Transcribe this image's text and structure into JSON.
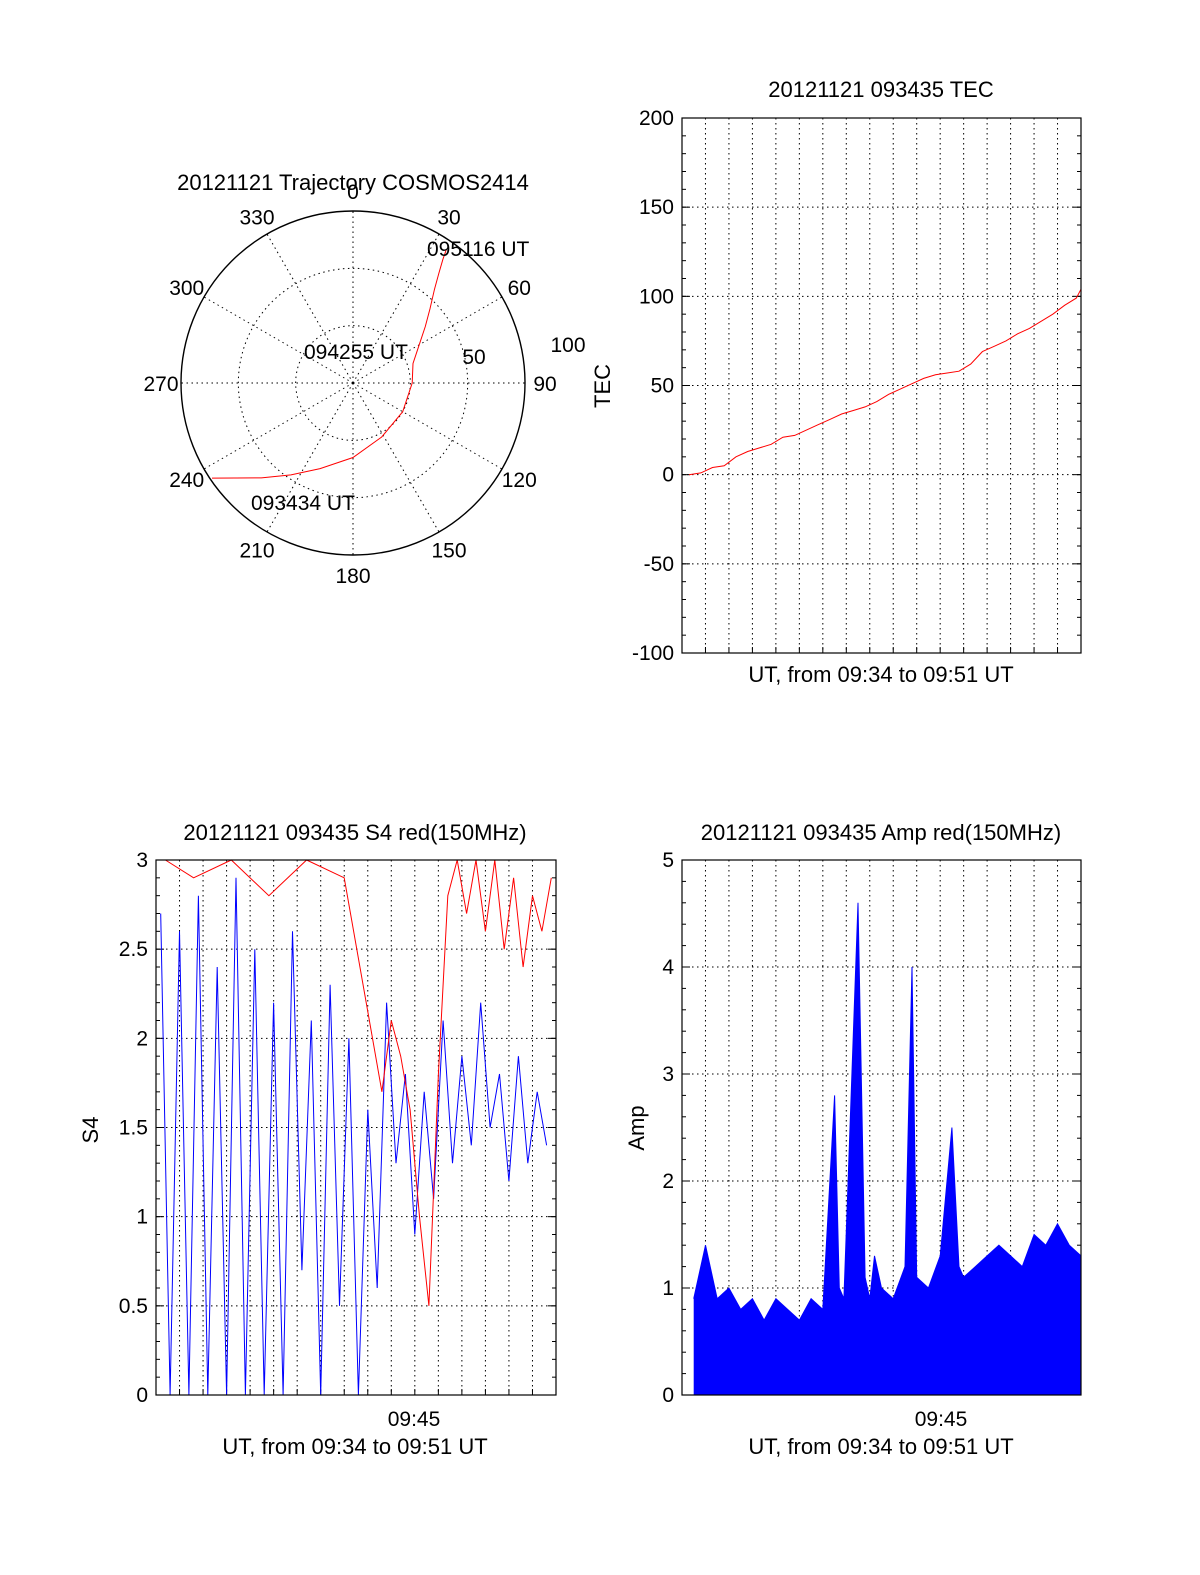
{
  "chart_data": [
    {
      "id": "polar",
      "type": "scatter",
      "title": "20121121 Trajectory COSMOS2414",
      "azimuth_labels": [
        "0",
        "30",
        "60",
        "90",
        "120",
        "150",
        "180",
        "210",
        "240",
        "270",
        "300",
        "330"
      ],
      "radial_labels": [
        "50",
        "100"
      ],
      "annotations": [
        "095116 UT",
        "094255 UT",
        "093434 UT"
      ],
      "series": [
        {
          "color": "#ff0000",
          "azimuth_deg": [
            236,
            231,
            224,
            214,
            201,
            180,
            152,
            120,
            90,
            72,
            60,
            52,
            46,
            41,
            38,
            36,
            35
          ],
          "radius": [
            89,
            79,
            69,
            58,
            48,
            39,
            32,
            30,
            31,
            33,
            40,
            48,
            56,
            65,
            73,
            80,
            85
          ]
        }
      ],
      "grid": true
    },
    {
      "id": "tec",
      "type": "line",
      "title": "20121121 093435 TEC",
      "xlabel": "UT, from 09:34 to 09:51 UT",
      "ylabel": "TEC",
      "ylim": [
        -100,
        200
      ],
      "yticks": [
        "200",
        "150",
        "100",
        "50",
        "0",
        "-50",
        "-100"
      ],
      "xlim_minutes": [
        0,
        17
      ],
      "grid": true,
      "series": [
        {
          "color": "#ff0000",
          "x_minutes": [
            0.3,
            0.8,
            1.3,
            1.8,
            2.3,
            2.8,
            3.3,
            3.8,
            4.3,
            4.8,
            5.3,
            5.8,
            6.3,
            6.8,
            7.3,
            7.8,
            8.3,
            8.8,
            9.3,
            9.8,
            10.3,
            10.8,
            11.3,
            11.8,
            12.3,
            12.8,
            13.3,
            13.8,
            14.3,
            14.8,
            15.3,
            15.8,
            16.3,
            16.8,
            17.0
          ],
          "values": [
            0,
            1,
            4,
            5,
            10,
            13,
            15,
            17,
            21,
            22,
            25,
            28,
            31,
            34,
            36,
            38,
            41,
            45,
            48,
            51,
            54,
            56,
            57,
            58,
            62,
            69,
            72,
            75,
            79,
            82,
            86,
            90,
            95,
            99,
            104
          ]
        }
      ]
    },
    {
      "id": "s4",
      "type": "line",
      "title": "20121121 093435 S4 red(150MHz)",
      "xlabel": "UT, from 09:34 to 09:51 UT",
      "ylabel": "S4",
      "ylim": [
        0,
        3
      ],
      "yticks": [
        "3",
        "2.5",
        "2",
        "1.5",
        "1",
        "0.5",
        "0"
      ],
      "xtick_label": "09:45",
      "xlim_minutes": [
        0,
        17
      ],
      "grid": true,
      "series": [
        {
          "color": "#0000ff",
          "x_minutes": [
            0.2,
            0.6,
            1.0,
            1.4,
            1.8,
            2.2,
            2.6,
            3.0,
            3.4,
            3.8,
            4.2,
            4.6,
            5.0,
            5.4,
            5.8,
            6.2,
            6.6,
            7.0,
            7.4,
            7.8,
            8.2,
            8.6,
            9.0,
            9.4,
            9.8,
            10.2,
            10.6,
            11.0,
            11.4,
            11.8,
            12.2,
            12.6,
            13.0,
            13.4,
            13.8,
            14.2,
            14.6,
            15.0,
            15.4,
            15.8,
            16.2,
            16.6
          ],
          "values": [
            2.7,
            0.0,
            2.6,
            0.0,
            2.8,
            0.0,
            2.4,
            0.0,
            2.9,
            0.0,
            2.5,
            0.0,
            2.2,
            0.0,
            2.6,
            0.7,
            2.1,
            0.0,
            2.3,
            0.5,
            2.0,
            0.0,
            1.6,
            0.6,
            2.2,
            1.3,
            1.8,
            0.9,
            1.7,
            1.1,
            2.1,
            1.3,
            1.9,
            1.4,
            2.2,
            1.5,
            1.8,
            1.2,
            1.9,
            1.3,
            1.7,
            1.4
          ]
        },
        {
          "color": "#ff0000",
          "x_minutes": [
            0.4,
            1.6,
            3.2,
            4.8,
            6.4,
            8.0,
            9.2,
            9.6,
            10.0,
            10.4,
            10.8,
            11.2,
            11.6,
            12.0,
            12.4,
            12.8,
            13.2,
            13.6,
            14.0,
            14.4,
            14.8,
            15.2,
            15.6,
            16.0,
            16.4,
            16.8
          ],
          "values": [
            3.0,
            2.9,
            3.0,
            2.8,
            3.0,
            2.9,
            2.0,
            1.7,
            2.1,
            1.9,
            1.6,
            1.0,
            0.5,
            1.8,
            2.8,
            3.0,
            2.7,
            3.0,
            2.6,
            3.0,
            2.5,
            2.9,
            2.4,
            2.8,
            2.6,
            2.9
          ]
        }
      ]
    },
    {
      "id": "amp",
      "type": "line",
      "title": "20121121 093435 Amp red(150MHz)",
      "xlabel": "UT, from 09:34 to 09:51 UT",
      "ylabel": "Amp",
      "ylim": [
        0,
        5
      ],
      "yticks": [
        "5",
        "4",
        "3",
        "2",
        "1",
        "0"
      ],
      "xtick_label": "09:45",
      "xlim_minutes": [
        0,
        17
      ],
      "grid": true,
      "series": [
        {
          "color": "#0000ff",
          "x_minutes": [
            0.5,
            1.0,
            1.5,
            2.0,
            2.5,
            3.0,
            3.5,
            4.0,
            4.5,
            5.0,
            5.5,
            6.0,
            6.5,
            6.7,
            6.9,
            7.5,
            7.8,
            8.0,
            8.2,
            8.5,
            9.0,
            9.5,
            9.8,
            10.0,
            10.5,
            11.0,
            11.5,
            11.8,
            12.0,
            12.5,
            13.0,
            13.5,
            14.0,
            14.5,
            15.0,
            15.5,
            16.0,
            16.5,
            17.0
          ],
          "values": [
            0.9,
            1.4,
            0.9,
            1.0,
            0.8,
            0.9,
            0.7,
            0.9,
            0.8,
            0.7,
            0.9,
            0.8,
            2.8,
            1.0,
            0.9,
            4.6,
            1.1,
            0.9,
            1.3,
            1.0,
            0.9,
            1.2,
            4.0,
            1.1,
            1.0,
            1.3,
            2.5,
            1.2,
            1.1,
            1.2,
            1.3,
            1.4,
            1.3,
            1.2,
            1.5,
            1.4,
            1.6,
            1.4,
            1.3
          ]
        }
      ]
    }
  ]
}
